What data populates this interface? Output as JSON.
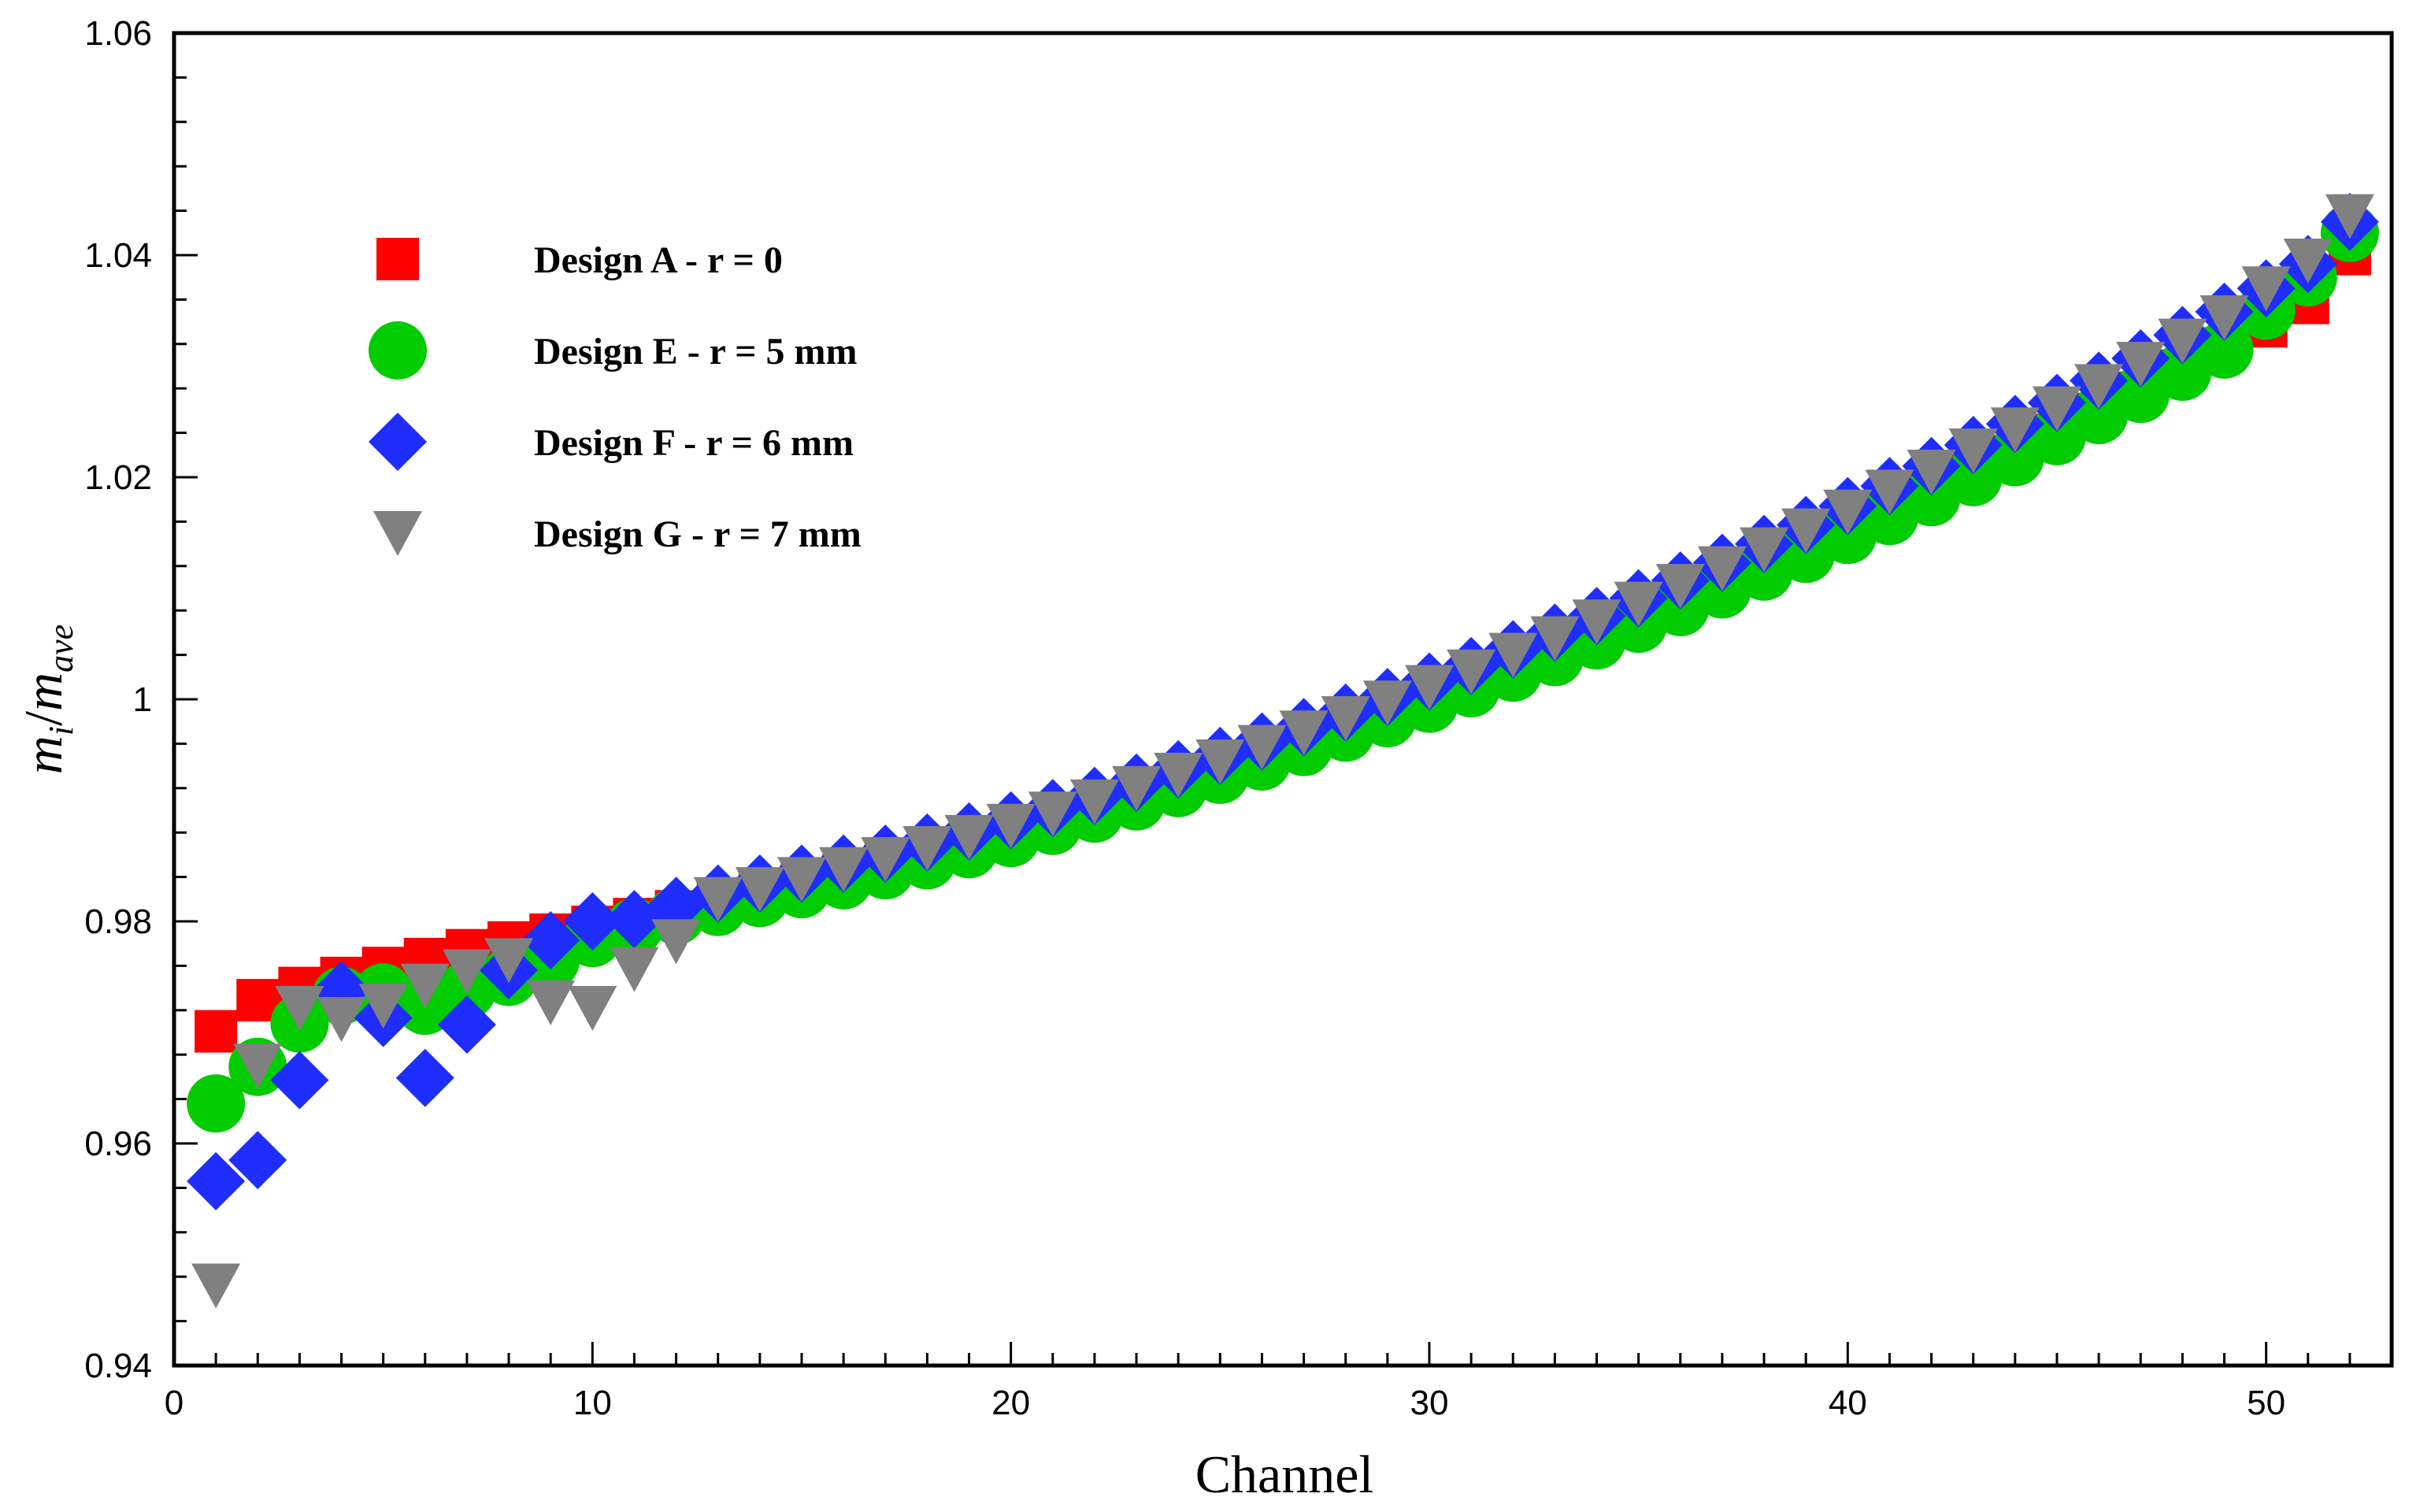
{
  "chart_data": {
    "type": "scatter",
    "title": "",
    "xlabel": "Channel",
    "ylabel": {
      "m1": "m",
      "sub1": "i",
      "slash": "/",
      "m2": "m",
      "sub2": "ave"
    },
    "xlim": [
      0,
      53
    ],
    "ylim": [
      0.94,
      1.06
    ],
    "xticks": [
      0,
      10,
      20,
      30,
      40,
      50
    ],
    "xtick_labels": [
      "0",
      "10",
      "20",
      "30",
      "40",
      "50"
    ],
    "yticks": [
      0.94,
      0.96,
      0.98,
      1.0,
      1.02,
      1.04,
      1.06
    ],
    "ytick_labels": [
      "0.94",
      "0.96",
      "0.98",
      "1",
      "1.02",
      "1.04",
      "1.06"
    ],
    "grid": false,
    "legend_position": "top-left",
    "series": [
      {
        "name": "Design A - r = 0",
        "marker": "square",
        "color": "#ff0000",
        "x": [
          1,
          2,
          3,
          4,
          5,
          6,
          7,
          8,
          9,
          10,
          11,
          12,
          13,
          14,
          15,
          16,
          17,
          18,
          19,
          20,
          21,
          22,
          23,
          24,
          25,
          26,
          27,
          28,
          29,
          30,
          31,
          32,
          33,
          34,
          35,
          36,
          37,
          38,
          39,
          40,
          41,
          42,
          43,
          44,
          45,
          46,
          47,
          48,
          49,
          50,
          51,
          52
        ],
        "values": [
          0.9701,
          0.9729,
          0.974,
          0.9749,
          0.9758,
          0.9766,
          0.9774,
          0.9781,
          0.9788,
          0.9795,
          0.9802,
          0.9809,
          0.9816,
          0.9824,
          0.9832,
          0.9841,
          0.985,
          0.9859,
          0.9868,
          0.9878,
          0.9889,
          0.99,
          0.9911,
          0.9922,
          0.9934,
          0.9946,
          0.9958,
          0.9971,
          0.9984,
          0.9997,
          1.0011,
          1.0025,
          1.0039,
          1.0054,
          1.0069,
          1.0084,
          1.01,
          1.0116,
          1.0132,
          1.0149,
          1.0166,
          1.0183,
          1.0201,
          1.0219,
          1.0238,
          1.0257,
          1.0276,
          1.0296,
          1.0316,
          1.0336,
          1.0357,
          1.0401
        ]
      },
      {
        "name": "Design E - r = 5 mm",
        "marker": "circle",
        "color": "#00cc00",
        "x": [
          1,
          2,
          3,
          4,
          5,
          6,
          7,
          8,
          9,
          10,
          11,
          12,
          13,
          14,
          15,
          16,
          17,
          18,
          19,
          20,
          21,
          22,
          23,
          24,
          25,
          26,
          27,
          28,
          29,
          30,
          31,
          32,
          33,
          34,
          35,
          36,
          37,
          38,
          39,
          40,
          41,
          42,
          43,
          44,
          45,
          46,
          47,
          48,
          49,
          50,
          51,
          52
        ],
        "values": [
          0.9636,
          0.9669,
          0.9708,
          0.9733,
          0.9736,
          0.9724,
          0.9738,
          0.975,
          0.9765,
          0.9785,
          0.9795,
          0.9805,
          0.9813,
          0.9821,
          0.9829,
          0.9837,
          0.9846,
          0.9855,
          0.9865,
          0.9875,
          0.9886,
          0.9897,
          0.9908,
          0.992,
          0.9932,
          0.9944,
          0.9957,
          0.997,
          0.9983,
          0.9996,
          1.001,
          1.0024,
          1.0038,
          1.0053,
          1.0068,
          1.0083,
          1.0099,
          1.0115,
          1.0131,
          1.0148,
          1.0165,
          1.0182,
          1.02,
          1.0218,
          1.0237,
          1.0256,
          1.0275,
          1.0295,
          1.0315,
          1.035,
          1.038,
          1.042
        ]
      },
      {
        "name": "Design F - r = 6 mm",
        "marker": "diamond",
        "color": "#1f2dff",
        "x": [
          1,
          2,
          3,
          4,
          5,
          6,
          7,
          8,
          9,
          10,
          11,
          12,
          13,
          14,
          15,
          16,
          17,
          18,
          19,
          20,
          21,
          22,
          23,
          24,
          25,
          26,
          27,
          28,
          29,
          30,
          31,
          32,
          33,
          34,
          35,
          36,
          37,
          38,
          39,
          40,
          41,
          42,
          43,
          44,
          45,
          46,
          47,
          48,
          49,
          50,
          51,
          52
        ],
        "values": [
          0.9566,
          0.9585,
          0.9657,
          0.9738,
          0.9713,
          0.9659,
          0.9707,
          0.9756,
          0.9783,
          0.98,
          0.9802,
          0.9814,
          0.9825,
          0.9834,
          0.9843,
          0.9852,
          0.9861,
          0.9871,
          0.9881,
          0.9891,
          0.9902,
          0.9913,
          0.9925,
          0.9937,
          0.9949,
          0.9962,
          0.9975,
          0.9988,
          1.0002,
          1.0016,
          1.003,
          1.0045,
          1.006,
          1.0075,
          1.0091,
          1.0107,
          1.0123,
          1.014,
          1.0157,
          1.0174,
          1.0192,
          1.021,
          1.0229,
          1.0248,
          1.0267,
          1.0287,
          1.0307,
          1.0328,
          1.0349,
          1.037,
          1.0392,
          1.043
        ]
      },
      {
        "name": "Design G - r = 7 mm",
        "marker": "triangle-down",
        "color": "#808080",
        "x": [
          1,
          2,
          3,
          4,
          5,
          6,
          7,
          8,
          9,
          10,
          11,
          12,
          13,
          14,
          15,
          16,
          17,
          18,
          19,
          20,
          21,
          22,
          23,
          24,
          25,
          26,
          27,
          28,
          29,
          30,
          31,
          32,
          33,
          34,
          35,
          36,
          37,
          38,
          39,
          40,
          41,
          42,
          43,
          44,
          45,
          46,
          47,
          48,
          49,
          50,
          51,
          52
        ],
        "values": [
          0.9472,
          0.967,
          0.9722,
          0.9712,
          0.9724,
          0.9742,
          0.9755,
          0.9765,
          0.9727,
          0.9722,
          0.9757,
          0.9782,
          0.982,
          0.9829,
          0.9838,
          0.9847,
          0.9856,
          0.9866,
          0.9876,
          0.9886,
          0.9897,
          0.9908,
          0.992,
          0.9932,
          0.9944,
          0.9957,
          0.997,
          0.9983,
          0.9997,
          1.0011,
          1.0025,
          1.004,
          1.0055,
          1.007,
          1.0086,
          1.0102,
          1.0118,
          1.0135,
          1.0152,
          1.0169,
          1.0187,
          1.0205,
          1.0224,
          1.0243,
          1.0262,
          1.0282,
          1.0302,
          1.0323,
          1.0344,
          1.037,
          1.0395,
          1.0435
        ]
      }
    ]
  }
}
